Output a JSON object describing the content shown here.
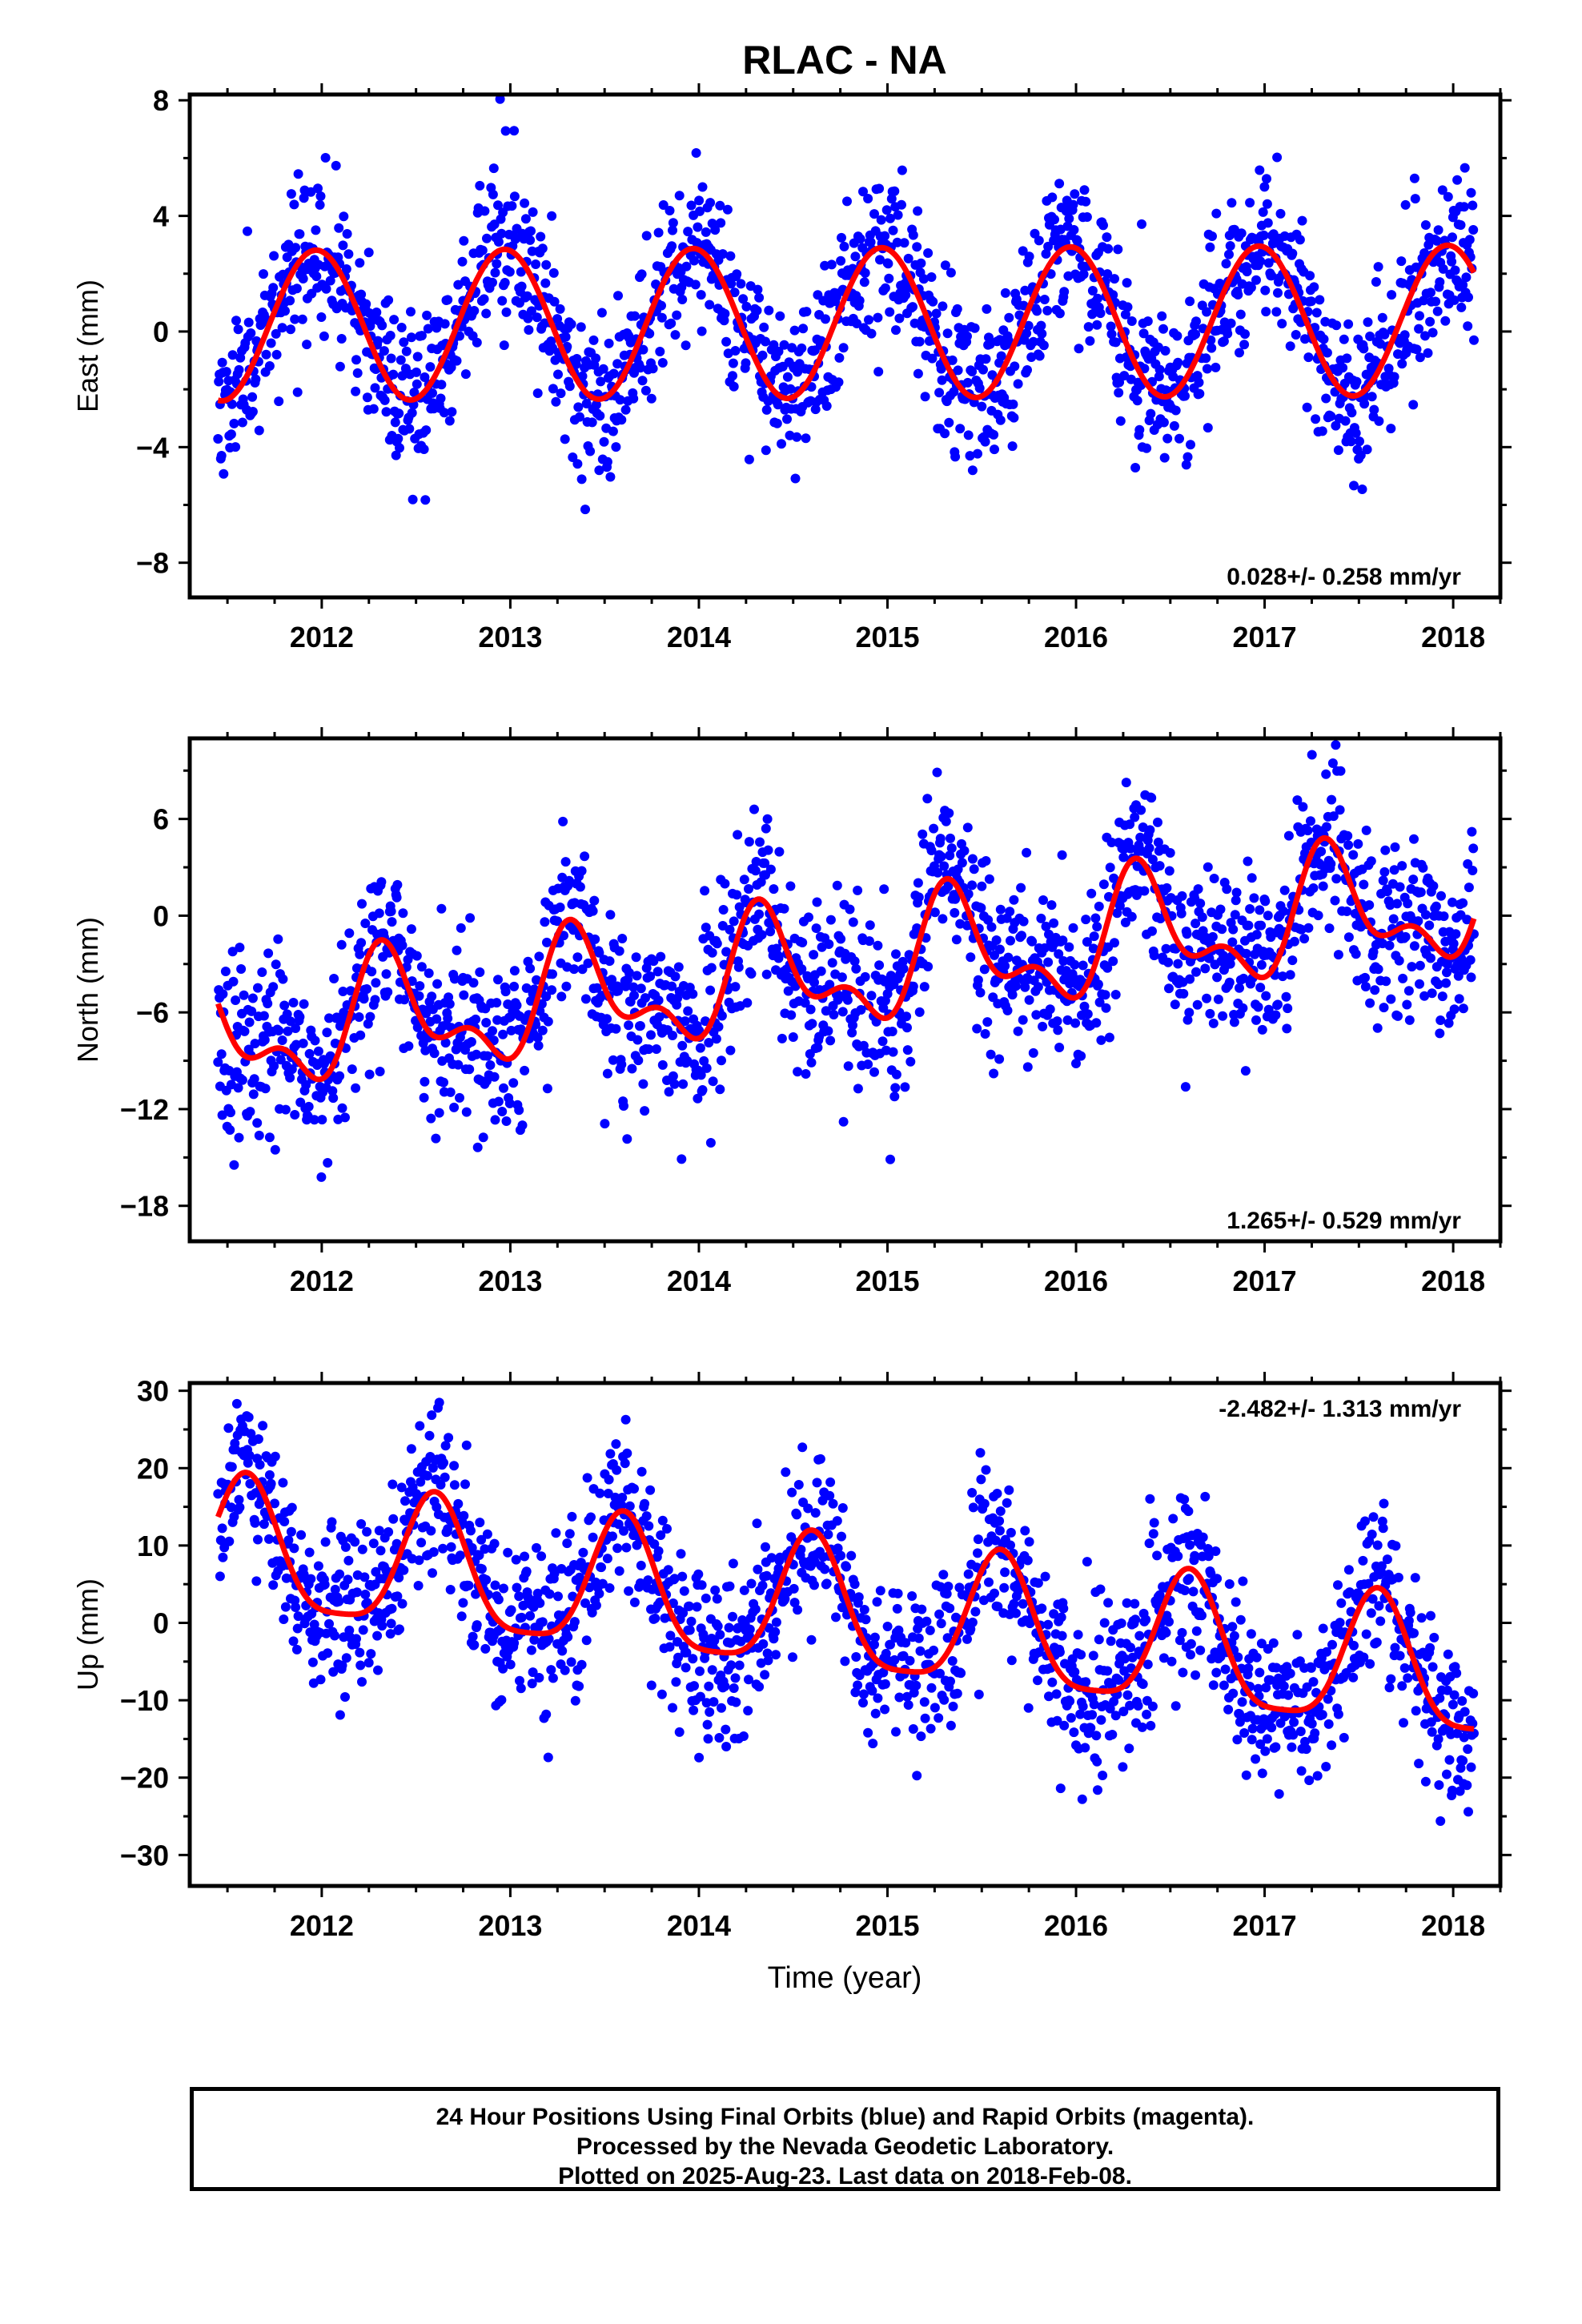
{
  "title": "RLAC - NA",
  "xlabel": "Time (year)",
  "footer": {
    "line1": "24 Hour Positions Using Final Orbits (blue) and Rapid Orbits (magenta).",
    "line2": "Processed by the Nevada Geodetic Laboratory.",
    "line3": "Plotted on 2025-Aug-23. Last data on 2018-Feb-08."
  },
  "colors": {
    "data": "#0000ff",
    "model": "#ff0000",
    "frame": "#000000"
  },
  "chart_data": [
    {
      "type": "scatter",
      "component": "east",
      "ylabel": "East (mm)",
      "rate": "0.028+/- 0.258 mm/yr",
      "xlim": [
        2011.3,
        2018.25
      ],
      "ylim": [
        -9.2,
        8.2
      ],
      "yticks": [
        -8,
        -4,
        0,
        4,
        8
      ],
      "xticks": [
        2012,
        2013,
        2014,
        2015,
        2016,
        2017,
        2018
      ],
      "x_start": 2011.45,
      "x_end": 2018.11,
      "series": [
        {
          "kind": "points",
          "model": {
            "trend": 0.028,
            "offset": 0.3,
            "annual_amp": 2.6,
            "annual_peak": 0.97,
            "semi_amp": 0.0,
            "semi_peak": 0.0
          },
          "scatter": 1.4,
          "count": 1800,
          "seed": 11
        },
        {
          "kind": "line",
          "model": {
            "trend": 0.028,
            "offset": 0.3,
            "annual_amp": 2.6,
            "annual_peak": 0.97,
            "semi_amp": 0.0,
            "semi_peak": 0.0
          }
        }
      ]
    },
    {
      "type": "scatter",
      "component": "north",
      "ylabel": "North (mm)",
      "rate": "1.265+/- 0.529 mm/yr",
      "xlim": [
        2011.3,
        2018.25
      ],
      "ylim": [
        -20.2,
        11.0
      ],
      "yticks": [
        -18,
        -12,
        -6,
        0,
        6
      ],
      "xticks": [
        2012,
        2013,
        2014,
        2015,
        2016,
        2017,
        2018
      ],
      "x_start": 2011.45,
      "x_end": 2018.11,
      "series": [
        {
          "kind": "points",
          "model": {
            "trend": 1.265,
            "offset": -3.0,
            "annual_amp": 3.2,
            "annual_peak": 0.35,
            "semi_amp": 1.8,
            "semi_peak": 0.3
          },
          "scatter": 2.8,
          "count": 1800,
          "seed": 23
        },
        {
          "kind": "line",
          "model": {
            "trend": 1.265,
            "offset": -3.0,
            "annual_amp": 3.2,
            "annual_peak": 0.35,
            "semi_amp": 1.8,
            "semi_peak": 0.3
          }
        }
      ]
    },
    {
      "type": "scatter",
      "component": "up",
      "ylabel": "Up (mm)",
      "rate": "-2.482+/- 1.313 mm/yr",
      "xlim": [
        2011.3,
        2018.25
      ],
      "ylim": [
        -34.0,
        31.0
      ],
      "yticks": [
        -30,
        -20,
        -10,
        0,
        10,
        20,
        30
      ],
      "xticks": [
        2012,
        2013,
        2014,
        2015,
        2016,
        2017,
        2018
      ],
      "x_start": 2011.45,
      "x_end": 2018.11,
      "series": [
        {
          "kind": "points",
          "model": {
            "trend": -2.482,
            "offset": 0.5,
            "annual_amp": 8.5,
            "annual_peak": 0.6,
            "semi_amp": 2.0,
            "semi_peak": 0.1
          },
          "scatter": 5.5,
          "count": 1800,
          "seed": 37
        },
        {
          "kind": "line",
          "model": {
            "trend": -2.482,
            "offset": 0.5,
            "annual_amp": 8.5,
            "annual_peak": 0.6,
            "semi_amp": 2.0,
            "semi_peak": 0.1
          }
        }
      ]
    }
  ]
}
